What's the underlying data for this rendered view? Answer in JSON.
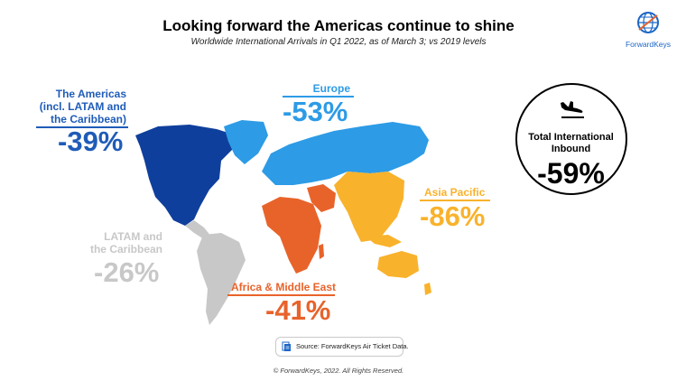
{
  "header": {
    "title": "Looking forward the Americas continue to shine",
    "subtitle": "Worldwide International Arrivals in Q1 2022, as of March 3; vs 2019 levels"
  },
  "logo": {
    "name": "ForwardKeys",
    "icon": "globe-icon"
  },
  "colors": {
    "americas": "#1f5cb8",
    "north_america_map": "#0f3f9c",
    "europe": "#2d9be6",
    "asia_pacific": "#f9b22c",
    "africa_middle_east": "#e8632a",
    "latam": "#c8c8c8"
  },
  "regions": {
    "americas": {
      "label_line1": "The Americas",
      "label_line2": "(incl. LATAM and",
      "label_line3": "the Caribbean)",
      "pct": "-39%"
    },
    "europe": {
      "label": "Europe",
      "pct": "-53%"
    },
    "asia_pacific": {
      "label": "Asia Pacific",
      "pct": "-86%"
    },
    "africa_middle_east": {
      "label": "Africa & Middle East",
      "pct": "-41%"
    },
    "latam": {
      "label_line1": "LATAM and",
      "label_line2": "the Caribbean",
      "pct": "-26%"
    }
  },
  "total": {
    "label_line1": "Total International",
    "label_line2": "Inbound",
    "pct": "-59%",
    "icon": "plane-landing-icon"
  },
  "source": {
    "text": "Source: ForwardKeys Air Ticket Data.",
    "icon": "document-icon"
  },
  "footer": {
    "copyright": "© ForwardKeys, 2022. All Rights Reserved."
  }
}
